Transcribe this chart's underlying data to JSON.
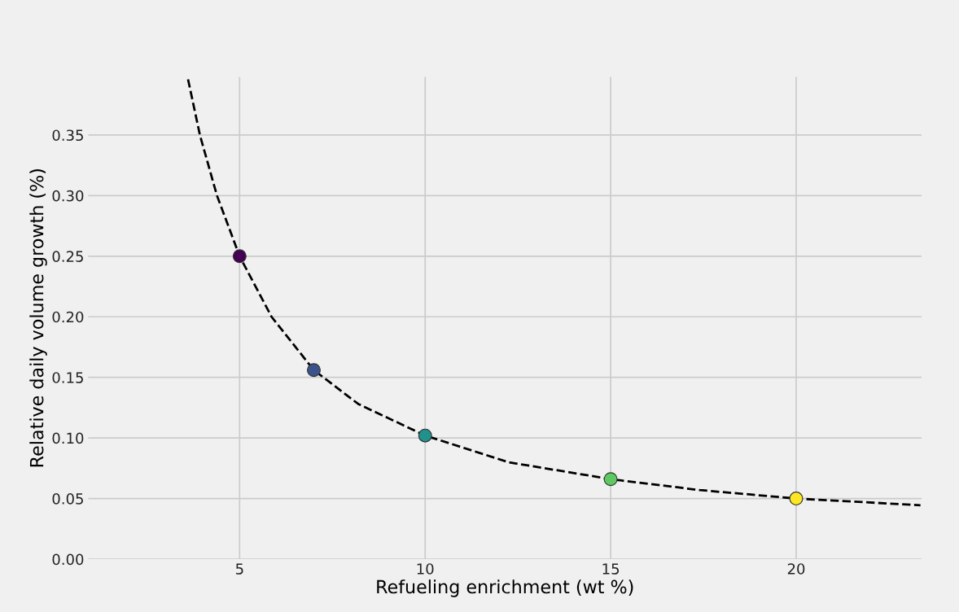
{
  "chart_data": {
    "type": "scatter",
    "xlabel": "Refueling enrichment (wt %)",
    "ylabel": "Relative daily volume growth (%)",
    "xlim": [
      0.92,
      23.38
    ],
    "ylim": [
      0,
      0.398
    ],
    "xticks": [
      5,
      10,
      15,
      20
    ],
    "yticks": [
      {
        "value": 0,
        "label": "0.00"
      },
      {
        "value": 0.05,
        "label": "0.05"
      },
      {
        "value": 0.1,
        "label": "0.10"
      },
      {
        "value": 0.15,
        "label": "0.15"
      },
      {
        "value": 0.2,
        "label": "0.20"
      },
      {
        "value": 0.25,
        "label": "0.25"
      },
      {
        "value": 0.3,
        "label": "0.30"
      },
      {
        "value": 0.35,
        "label": "0.35"
      }
    ],
    "grid": true,
    "series": [
      {
        "type": "line",
        "color": "#000000",
        "line_style": "dashed",
        "marker": "none",
        "x": [
          3.61,
          3.93,
          4.39,
          5,
          5.86,
          7,
          8.2,
          10,
          12.24,
          15,
          17.4,
          20,
          23.35
        ],
        "values": [
          0.396,
          0.35,
          0.3,
          0.25,
          0.2,
          0.156,
          0.128,
          0.102,
          0.08,
          0.066,
          0.057,
          0.05,
          0.0445
        ]
      },
      {
        "marker": "circle",
        "x": [
          5,
          7,
          10,
          15,
          20
        ],
        "values": [
          0.25,
          0.156,
          0.102,
          0.066,
          0.05
        ],
        "colors": [
          "#440154",
          "#3b528b",
          "#21918c",
          "#5ec962",
          "#fde725"
        ]
      }
    ]
  }
}
